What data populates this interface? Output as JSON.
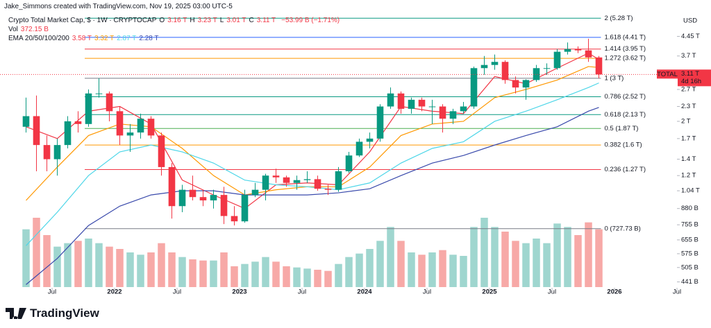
{
  "header": {
    "credit": "Jake_Simmons created with TradingView.com, Nov 19, 2025 03:00 UTC-5",
    "title": "Crypto Total Market Cap, $ · 1W · CRYPTOCAP",
    "legend_color": "#f23645",
    "ohlc": [
      {
        "key": "O",
        "value": 3.16,
        "label": "3.16 T"
      },
      {
        "key": "H",
        "value": 3.23,
        "label": "3.23 T"
      },
      {
        "key": "L",
        "value": 3.01,
        "label": "3.01 T"
      },
      {
        "key": "C",
        "value": 3.11,
        "label": "3.11 T"
      }
    ],
    "change": "−53.99 B (−1.71%)",
    "volume_name": "Vol",
    "volume_label": "372.15 B",
    "ema_name": "EMA 20/50/100/200"
  },
  "chart_data": {
    "type": "candlestick",
    "currency": "USD",
    "log_scale": true,
    "grid": false,
    "xlim": [
      "2021-02",
      "2026-07"
    ],
    "ylim": [
      0.42,
      5.5
    ],
    "xticks": [
      {
        "value": "2021-07",
        "label": "Jul"
      },
      {
        "value": "2022-01",
        "label": "2022"
      },
      {
        "value": "2022-07",
        "label": "Jul"
      },
      {
        "value": "2023-01",
        "label": "2023"
      },
      {
        "value": "2023-07",
        "label": "Jul"
      },
      {
        "value": "2024-01",
        "label": "2024"
      },
      {
        "value": "2024-07",
        "label": "Jul"
      },
      {
        "value": "2025-01",
        "label": "2025"
      },
      {
        "value": "2025-07",
        "label": "Jul"
      },
      {
        "value": "2026-01",
        "label": "2026"
      },
      {
        "value": "2026-07",
        "label": "Jul"
      }
    ],
    "yticks": [
      {
        "value": 4.45,
        "label": "4.45 T"
      },
      {
        "value": 3.7,
        "label": "3.7 T"
      },
      {
        "value": 2.7,
        "label": "2.7 T"
      },
      {
        "value": 2.3,
        "label": "2.3 T"
      },
      {
        "value": 2,
        "label": "2 T"
      },
      {
        "value": 1.7,
        "label": "1.7 T"
      },
      {
        "value": 1.4,
        "label": "1.4 T"
      },
      {
        "value": 1.2,
        "label": "1.2 T"
      },
      {
        "value": 1.04,
        "label": "1.04 T"
      },
      {
        "value": 0.88,
        "label": "880 B"
      },
      {
        "value": 0.755,
        "label": "755 B"
      },
      {
        "value": 0.655,
        "label": "655 B"
      },
      {
        "value": 0.575,
        "label": "575 B"
      },
      {
        "value": 0.505,
        "label": "505 B"
      },
      {
        "value": 0.441,
        "label": "441 B"
      }
    ],
    "x": [
      "2021-04",
      "2021-05",
      "2021-06",
      "2021-07",
      "2021-08",
      "2021-09",
      "2021-10",
      "2021-11",
      "2021-12",
      "2022-01",
      "2022-02",
      "2022-03",
      "2022-04",
      "2022-05",
      "2022-06",
      "2022-07",
      "2022-08",
      "2022-09",
      "2022-10",
      "2022-11",
      "2022-12",
      "2023-01",
      "2023-02",
      "2023-03",
      "2023-04",
      "2023-05",
      "2023-06",
      "2023-07",
      "2023-08",
      "2023-09",
      "2023-10",
      "2023-11",
      "2023-12",
      "2024-01",
      "2024-02",
      "2024-03",
      "2024-04",
      "2024-05",
      "2024-06",
      "2024-07",
      "2024-08",
      "2024-09",
      "2024-10",
      "2024-11",
      "2024-12",
      "2025-01",
      "2025-02",
      "2025-03",
      "2025-04",
      "2025-05",
      "2025-06",
      "2025-07",
      "2025-08",
      "2025-09",
      "2025-10",
      "2025-11"
    ],
    "open": [
      1.9,
      2.1,
      1.6,
      1.4,
      1.6,
      2.0,
      1.95,
      2.6,
      2.6,
      2.2,
      1.75,
      1.8,
      2.05,
      1.75,
      1.3,
      0.9,
      1.05,
      0.98,
      0.95,
      1.0,
      0.82,
      0.78,
      1.0,
      1.05,
      1.2,
      1.18,
      1.12,
      1.15,
      1.16,
      1.06,
      1.05,
      1.25,
      1.45,
      1.65,
      1.7,
      2.3,
      2.6,
      2.25,
      2.45,
      2.3,
      2.3,
      2.05,
      2.2,
      2.3,
      3.3,
      3.4,
      3.5,
      2.95,
      2.75,
      2.95,
      3.3,
      3.3,
      3.85,
      3.95,
      3.9,
      3.65
    ],
    "high": [
      2.5,
      2.55,
      1.75,
      1.7,
      2.1,
      2.2,
      2.7,
      3.0,
      2.65,
      2.3,
      1.95,
      2.15,
      2.1,
      1.8,
      1.35,
      1.1,
      1.2,
      1.05,
      1.05,
      1.08,
      0.9,
      1.05,
      1.12,
      1.22,
      1.28,
      1.2,
      1.2,
      1.25,
      1.2,
      1.1,
      1.3,
      1.5,
      1.7,
      1.8,
      2.35,
      2.75,
      2.65,
      2.5,
      2.5,
      2.45,
      2.35,
      2.25,
      2.4,
      3.35,
      3.7,
      3.75,
      3.55,
      3.05,
      2.97,
      3.4,
      3.45,
      3.95,
      4.2,
      4.05,
      4.35,
      3.7
    ],
    "low": [
      1.8,
      1.25,
      1.25,
      1.2,
      1.55,
      1.8,
      1.9,
      2.5,
      2.0,
      1.6,
      1.5,
      1.7,
      1.7,
      1.2,
      0.8,
      0.85,
      0.95,
      0.9,
      0.88,
      0.76,
      0.75,
      0.77,
      0.98,
      0.95,
      1.12,
      1.08,
      1.05,
      1.12,
      1.04,
      1.0,
      1.03,
      1.23,
      1.43,
      1.55,
      1.65,
      2.25,
      2.15,
      2.15,
      2.2,
      1.95,
      1.8,
      1.95,
      2.15,
      2.25,
      3.1,
      3.25,
      2.85,
      2.6,
      2.45,
      2.9,
      3.1,
      3.25,
      3.75,
      3.8,
      3.5,
      3.0
    ],
    "close": [
      2.1,
      1.6,
      1.4,
      1.6,
      2.0,
      1.95,
      2.6,
      2.6,
      2.2,
      1.75,
      1.8,
      2.05,
      1.75,
      1.3,
      0.9,
      1.05,
      0.98,
      0.95,
      1.0,
      0.82,
      0.78,
      1.0,
      1.05,
      1.2,
      1.18,
      1.12,
      1.15,
      1.16,
      1.06,
      1.05,
      1.25,
      1.45,
      1.65,
      1.7,
      2.3,
      2.6,
      2.25,
      2.45,
      2.3,
      2.3,
      2.05,
      2.2,
      2.3,
      3.3,
      3.4,
      3.5,
      2.95,
      2.75,
      2.95,
      3.3,
      3.3,
      3.85,
      3.95,
      3.9,
      3.65,
      3.11
    ],
    "volume": [
      500,
      600,
      450,
      350,
      380,
      400,
      420,
      380,
      350,
      330,
      300,
      280,
      300,
      380,
      300,
      260,
      240,
      230,
      230,
      300,
      180,
      200,
      220,
      260,
      220,
      180,
      170,
      160,
      150,
      140,
      200,
      260,
      290,
      330,
      400,
      520,
      400,
      300,
      280,
      300,
      320,
      280,
      270,
      520,
      600,
      520,
      480,
      400,
      380,
      420,
      380,
      550,
      520,
      450,
      560,
      500
    ],
    "up_color": "#089981",
    "down_color": "#f23645",
    "volume_up_color": "#9fd6cf",
    "volume_down_color": "#f7a9a7",
    "ema": [
      {
        "color": "#f23645",
        "last_label": "3.58 T",
        "x": [
          "2021-04",
          "2021-07",
          "2021-10",
          "2022-01",
          "2022-04",
          "2022-07",
          "2022-10",
          "2023-01",
          "2023-04",
          "2023-07",
          "2023-10",
          "2024-01",
          "2024-04",
          "2024-07",
          "2024-10",
          "2025-01",
          "2025-04",
          "2025-07",
          "2025-10",
          "2025-11"
        ],
        "values": [
          1.9,
          1.7,
          2.2,
          2.3,
          1.95,
          1.15,
          1.0,
          0.88,
          1.1,
          1.12,
          1.1,
          1.5,
          2.3,
          2.2,
          2.15,
          3.05,
          2.85,
          3.3,
          3.8,
          3.58
        ]
      },
      {
        "color": "#ff9800",
        "last_label": "3.32 T",
        "x": [
          "2021-04",
          "2021-07",
          "2021-10",
          "2022-01",
          "2022-04",
          "2022-07",
          "2022-10",
          "2023-01",
          "2023-04",
          "2023-07",
          "2023-10",
          "2024-01",
          "2024-04",
          "2024-07",
          "2024-10",
          "2025-01",
          "2025-04",
          "2025-07",
          "2025-10",
          "2025-11"
        ],
        "values": [
          0.95,
          1.3,
          1.75,
          1.95,
          1.9,
          1.55,
          1.2,
          1.0,
          1.05,
          1.08,
          1.08,
          1.3,
          1.75,
          1.95,
          2.0,
          2.5,
          2.7,
          2.95,
          3.35,
          3.32
        ]
      },
      {
        "color": "#4dd6e8",
        "last_label": "2.87 T",
        "x": [
          "2021-04",
          "2021-07",
          "2021-10",
          "2022-01",
          "2022-04",
          "2022-07",
          "2022-10",
          "2023-01",
          "2023-04",
          "2023-07",
          "2023-10",
          "2024-01",
          "2024-04",
          "2024-07",
          "2024-10",
          "2025-01",
          "2025-04",
          "2025-07",
          "2025-10",
          "2025-11"
        ],
        "values": [
          0.62,
          0.85,
          1.2,
          1.5,
          1.6,
          1.5,
          1.35,
          1.15,
          1.1,
          1.08,
          1.05,
          1.12,
          1.35,
          1.55,
          1.65,
          2.0,
          2.2,
          2.45,
          2.75,
          2.87
        ]
      },
      {
        "color": "#3949ab",
        "last_label": "2.28 T",
        "x": [
          "2021-04",
          "2021-07",
          "2021-10",
          "2022-01",
          "2022-04",
          "2022-07",
          "2022-10",
          "2023-01",
          "2023-04",
          "2023-07",
          "2023-10",
          "2024-01",
          "2024-04",
          "2024-07",
          "2024-10",
          "2025-01",
          "2025-04",
          "2025-07",
          "2025-10",
          "2025-11"
        ],
        "values": [
          0.43,
          0.55,
          0.75,
          0.9,
          1.0,
          1.04,
          1.04,
          1.0,
          1.0,
          1.0,
          1.02,
          1.06,
          1.2,
          1.35,
          1.45,
          1.6,
          1.75,
          1.9,
          2.2,
          2.28
        ]
      }
    ],
    "fib_levels": [
      {
        "value": 5.28,
        "label": "2 (5.28 T)",
        "color": "#089981"
      },
      {
        "value": 4.41,
        "label": "1.618 (4.41 T)",
        "color": "#2962ff"
      },
      {
        "value": 3.95,
        "label": "1.414 (3.95 T)",
        "color": "#f23645"
      },
      {
        "value": 3.62,
        "label": "1.272 (3.62 T)",
        "color": "#ff9800"
      },
      {
        "value": 3,
        "label": "1 (3 T)",
        "color": "#787b86"
      },
      {
        "value": 2.52,
        "label": "0.786 (2.52 T)",
        "color": "#089981"
      },
      {
        "value": 2.13,
        "label": "0.618 (2.13 T)",
        "color": "#089981"
      },
      {
        "value": 1.87,
        "label": "0.5 (1.87 T)",
        "color": "#4caf50"
      },
      {
        "value": 1.6,
        "label": "0.382 (1.6 T)",
        "color": "#ff9800"
      },
      {
        "value": 1.27,
        "label": "0.236 (1.27 T)",
        "color": "#f23645"
      },
      {
        "value": 0.72773,
        "label": "0 (727.73 B)",
        "color": "#787b86"
      }
    ],
    "last_price": {
      "symbol": "TOTAL",
      "value": 3.11,
      "label": "3.11 T",
      "countdown": "4d 16h",
      "color": "#f23645"
    }
  },
  "logo": "TradingView"
}
